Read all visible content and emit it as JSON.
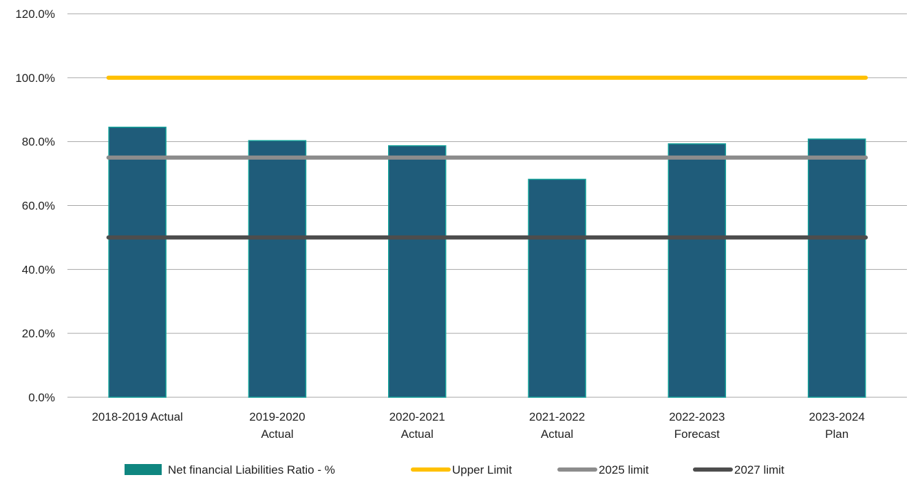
{
  "chart_data": {
    "type": "bar",
    "categories": [
      [
        "2018-2019 Actual"
      ],
      [
        "2019-2020",
        "Actual"
      ],
      [
        "2020-2021",
        "Actual"
      ],
      [
        "2021-2022",
        "Actual"
      ],
      [
        "2022-2023",
        "Forecast"
      ],
      [
        "2023-2024",
        "Plan"
      ]
    ],
    "series": [
      {
        "name": "Net financial Liabilities Ratio - %",
        "kind": "bar",
        "color": "#1f5c7a",
        "edge_color": "#13a29a",
        "legend_color": "#0f8680",
        "values": [
          84.5,
          80.3,
          78.7,
          68.2,
          79.3,
          80.8
        ]
      },
      {
        "name": "Upper Limit",
        "kind": "line",
        "color": "#ffc000",
        "values": [
          100,
          100,
          100,
          100,
          100,
          100
        ]
      },
      {
        "name": "2025 limit",
        "kind": "line",
        "color": "#8c8c8c",
        "values": [
          75,
          75,
          75,
          75,
          75,
          75
        ]
      },
      {
        "name": "2027 limit",
        "kind": "line",
        "color": "#4d4d4d",
        "values": [
          50,
          50,
          50,
          50,
          50,
          50
        ]
      }
    ],
    "y_ticks": [
      "0.0%",
      "20.0%",
      "40.0%",
      "60.0%",
      "80.0%",
      "100.0%",
      "120.0%"
    ],
    "ylim": [
      0,
      120
    ],
    "grid": true,
    "gridline_color": "#a6a6a6",
    "legend_position": "bottom",
    "title": "",
    "xlabel": "",
    "ylabel": ""
  }
}
